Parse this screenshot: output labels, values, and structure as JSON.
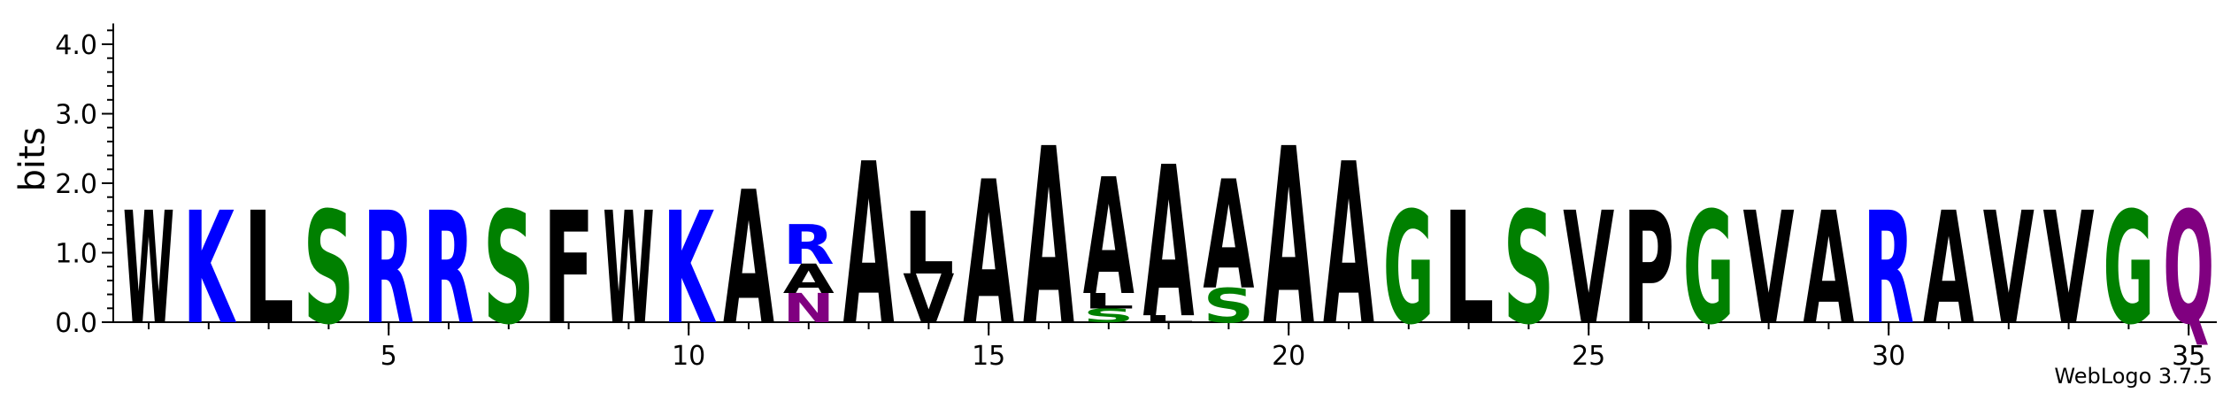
{
  "chart_data": {
    "type": "sequence-logo",
    "ylabel": "bits",
    "ylim": [
      0,
      4.3
    ],
    "y_ticks": [
      {
        "value": 0,
        "label": "0.0"
      },
      {
        "value": 1,
        "label": "1.0"
      },
      {
        "value": 2,
        "label": "2.0"
      },
      {
        "value": 3,
        "label": "3.0"
      },
      {
        "value": 4,
        "label": "4.0"
      }
    ],
    "x_range": [
      1,
      35
    ],
    "x_ticks": [
      {
        "value": 5,
        "label": "5"
      },
      {
        "value": 10,
        "label": "10"
      },
      {
        "value": 15,
        "label": "15"
      },
      {
        "value": 20,
        "label": "20"
      },
      {
        "value": 25,
        "label": "25"
      },
      {
        "value": 30,
        "label": "30"
      },
      {
        "value": 35,
        "label": "35"
      }
    ],
    "colors": {
      "green": "#008000",
      "blue": "#0000ff",
      "black": "#000000",
      "purple": "#800080"
    },
    "positions": [
      {
        "pos": 1,
        "stack": [
          {
            "letter": "W",
            "bits": 1.62,
            "color": "black"
          }
        ]
      },
      {
        "pos": 2,
        "stack": [
          {
            "letter": "K",
            "bits": 1.62,
            "color": "blue"
          }
        ]
      },
      {
        "pos": 3,
        "stack": [
          {
            "letter": "L",
            "bits": 1.62,
            "color": "black"
          }
        ]
      },
      {
        "pos": 4,
        "stack": [
          {
            "letter": "S",
            "bits": 1.62,
            "color": "green"
          }
        ]
      },
      {
        "pos": 5,
        "stack": [
          {
            "letter": "R",
            "bits": 1.62,
            "color": "blue"
          }
        ]
      },
      {
        "pos": 6,
        "stack": [
          {
            "letter": "R",
            "bits": 1.62,
            "color": "blue"
          }
        ]
      },
      {
        "pos": 7,
        "stack": [
          {
            "letter": "S",
            "bits": 1.62,
            "color": "green"
          }
        ]
      },
      {
        "pos": 8,
        "stack": [
          {
            "letter": "F",
            "bits": 1.62,
            "color": "black"
          }
        ]
      },
      {
        "pos": 9,
        "stack": [
          {
            "letter": "W",
            "bits": 1.62,
            "color": "black"
          }
        ]
      },
      {
        "pos": 10,
        "stack": [
          {
            "letter": "K",
            "bits": 1.62,
            "color": "blue"
          }
        ]
      },
      {
        "pos": 11,
        "stack": [
          {
            "letter": "A",
            "bits": 1.92,
            "color": "black"
          }
        ]
      },
      {
        "pos": 12,
        "stack": [
          {
            "letter": "N",
            "bits": 0.42,
            "color": "purple"
          },
          {
            "letter": "A",
            "bits": 0.42,
            "color": "black"
          },
          {
            "letter": "R",
            "bits": 0.57,
            "color": "blue"
          }
        ]
      },
      {
        "pos": 13,
        "stack": [
          {
            "letter": "A",
            "bits": 2.33,
            "color": "black"
          }
        ]
      },
      {
        "pos": 14,
        "stack": [
          {
            "letter": "V",
            "bits": 0.7,
            "color": "black"
          },
          {
            "letter": "L",
            "bits": 0.9,
            "color": "black"
          }
        ]
      },
      {
        "pos": 15,
        "stack": [
          {
            "letter": "A",
            "bits": 2.07,
            "color": "black"
          }
        ]
      },
      {
        "pos": 16,
        "stack": [
          {
            "letter": "A",
            "bits": 2.55,
            "color": "black"
          }
        ]
      },
      {
        "pos": 17,
        "stack": [
          {
            "letter": "S",
            "bits": 0.2,
            "color": "green"
          },
          {
            "letter": "L",
            "bits": 0.22,
            "color": "black"
          },
          {
            "letter": "A",
            "bits": 1.68,
            "color": "black"
          }
        ]
      },
      {
        "pos": 18,
        "stack": [
          {
            "letter": "L",
            "bits": 0.1,
            "color": "black"
          },
          {
            "letter": "A",
            "bits": 2.18,
            "color": "black"
          }
        ]
      },
      {
        "pos": 19,
        "stack": [
          {
            "letter": "S",
            "bits": 0.5,
            "color": "green"
          },
          {
            "letter": "A",
            "bits": 1.57,
            "color": "black"
          }
        ]
      },
      {
        "pos": 20,
        "stack": [
          {
            "letter": "A",
            "bits": 2.55,
            "color": "black"
          }
        ]
      },
      {
        "pos": 21,
        "stack": [
          {
            "letter": "A",
            "bits": 2.33,
            "color": "black"
          }
        ]
      },
      {
        "pos": 22,
        "stack": [
          {
            "letter": "G",
            "bits": 1.62,
            "color": "green"
          }
        ]
      },
      {
        "pos": 23,
        "stack": [
          {
            "letter": "L",
            "bits": 1.62,
            "color": "black"
          }
        ]
      },
      {
        "pos": 24,
        "stack": [
          {
            "letter": "S",
            "bits": 1.62,
            "color": "green"
          }
        ]
      },
      {
        "pos": 25,
        "stack": [
          {
            "letter": "V",
            "bits": 1.62,
            "color": "black"
          }
        ]
      },
      {
        "pos": 26,
        "stack": [
          {
            "letter": "P",
            "bits": 1.62,
            "color": "black"
          }
        ]
      },
      {
        "pos": 27,
        "stack": [
          {
            "letter": "G",
            "bits": 1.62,
            "color": "green"
          }
        ]
      },
      {
        "pos": 28,
        "stack": [
          {
            "letter": "V",
            "bits": 1.62,
            "color": "black"
          }
        ]
      },
      {
        "pos": 29,
        "stack": [
          {
            "letter": "A",
            "bits": 1.62,
            "color": "black"
          }
        ]
      },
      {
        "pos": 30,
        "stack": [
          {
            "letter": "R",
            "bits": 1.62,
            "color": "blue"
          }
        ]
      },
      {
        "pos": 31,
        "stack": [
          {
            "letter": "A",
            "bits": 1.62,
            "color": "black"
          }
        ]
      },
      {
        "pos": 32,
        "stack": [
          {
            "letter": "V",
            "bits": 1.62,
            "color": "black"
          }
        ]
      },
      {
        "pos": 33,
        "stack": [
          {
            "letter": "V",
            "bits": 1.62,
            "color": "black"
          }
        ]
      },
      {
        "pos": 34,
        "stack": [
          {
            "letter": "G",
            "bits": 1.62,
            "color": "green"
          }
        ]
      },
      {
        "pos": 35,
        "stack": [
          {
            "letter": "Q",
            "bits": 1.62,
            "color": "purple"
          }
        ]
      }
    ]
  },
  "credit": "WebLogo 3.7.5"
}
